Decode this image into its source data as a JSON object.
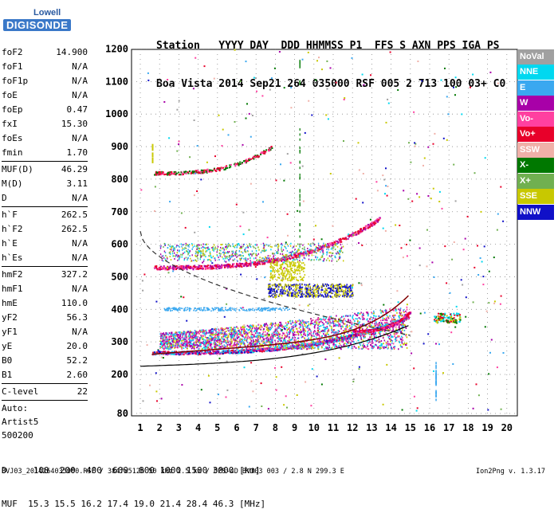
{
  "logo": {
    "line1": "Lowell",
    "line2": "DIGISONDE"
  },
  "header": {
    "line1": "Station   YYYY DAY  DDD HHMMSS P1  FFS S AXN PPS IGA PS",
    "line2": "Boa Vista 2014 Sep21 264 035000 RSF 005 2 713 100 03+ C0"
  },
  "params": [
    {
      "k": "foF2",
      "v": "14.900"
    },
    {
      "k": "foF1",
      "v": "N/A"
    },
    {
      "k": "foF1p",
      "v": "N/A"
    },
    {
      "k": "foE",
      "v": "N/A"
    },
    {
      "k": "foEp",
      "v": "0.47"
    },
    {
      "k": "fxI",
      "v": "15.30"
    },
    {
      "k": "foEs",
      "v": "N/A"
    },
    {
      "k": "fmin",
      "v": "1.70"
    },
    {
      "sep": true
    },
    {
      "k": "MUF(D)",
      "v": "46.29"
    },
    {
      "k": "M(D)",
      "v": "3.11"
    },
    {
      "k": "D",
      "v": "N/A"
    },
    {
      "sep": true
    },
    {
      "k": "h`F",
      "v": "262.5"
    },
    {
      "k": "h`F2",
      "v": "262.5"
    },
    {
      "k": "h`E",
      "v": "N/A"
    },
    {
      "k": "h`Es",
      "v": "N/A"
    },
    {
      "sep": true
    },
    {
      "k": "hmF2",
      "v": "327.2"
    },
    {
      "k": "hmF1",
      "v": "N/A"
    },
    {
      "k": "hmE",
      "v": "110.0"
    },
    {
      "k": "yF2",
      "v": "56.3"
    },
    {
      "k": "yF1",
      "v": "N/A"
    },
    {
      "k": "yE",
      "v": "20.0"
    },
    {
      "k": "B0",
      "v": "52.2"
    },
    {
      "k": "B1",
      "v": "2.60"
    },
    {
      "sep": true
    },
    {
      "k": "C-level",
      "v": "22"
    },
    {
      "sep": true
    }
  ],
  "info": [
    "Auto:",
    "Artist5",
    "500200"
  ],
  "legend": [
    {
      "label": "NoVal",
      "color": "#a0a0a0"
    },
    {
      "label": "NNE",
      "color": "#00d8f0"
    },
    {
      "label": "E",
      "color": "#3aa8f0"
    },
    {
      "label": "W",
      "color": "#a800a8"
    },
    {
      "label": "Vo-",
      "color": "#ff40a0"
    },
    {
      "label": "Vo+",
      "color": "#e8002a"
    },
    {
      "label": "SSW",
      "color": "#f0b0a8"
    },
    {
      "label": "X-",
      "color": "#007800"
    },
    {
      "label": "X+",
      "color": "#70b050"
    },
    {
      "label": "SSE",
      "color": "#c8c800"
    },
    {
      "label": "NNW",
      "color": "#1010c8"
    }
  ],
  "axes": {
    "x_ticks": [
      "1",
      "2",
      "3",
      "4",
      "5",
      "6",
      "7",
      "8",
      "9",
      "10",
      "11",
      "12",
      "13",
      "14",
      "15",
      "16",
      "17",
      "18",
      "19",
      "20"
    ],
    "y_ticks": [
      "80",
      "200",
      "300",
      "400",
      "500",
      "600",
      "700",
      "800",
      "900",
      "1000",
      "1100",
      "1200"
    ]
  },
  "footer": {
    "line1": "D     100  200  400  600  800 1000 1500 3000 [km]",
    "line2": "MUF  15.3 15.5 16.2 17.4 19.0 21.4 28.4 46.3 [MHz]"
  },
  "file_line": "BVJ03_2014264035000.RSF / 384fx512h 50 kHz 2.5 km / DPS-4D BVJ03 003 / 2.8 N 299.3 E",
  "version": "Ion2Png v. 1.3.17"
}
